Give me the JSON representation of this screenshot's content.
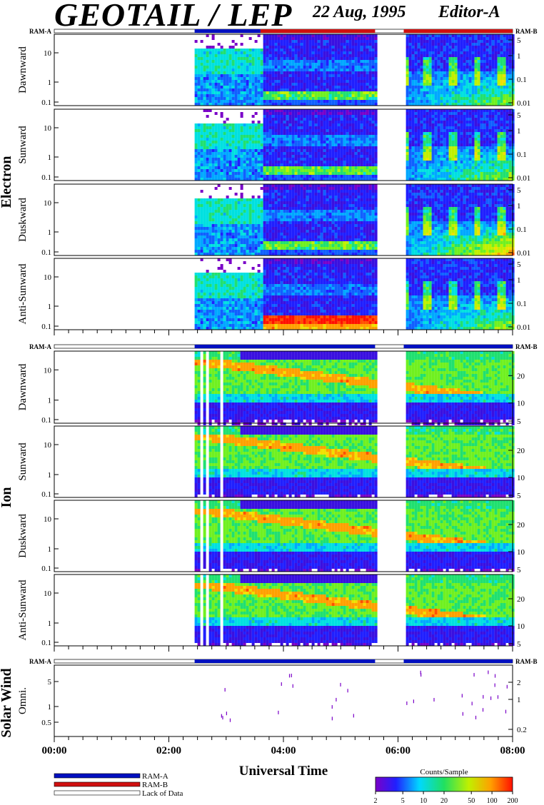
{
  "header": {
    "title": "GEOTAIL / LEP",
    "date": "22 Aug, 1995",
    "editor": "Editor-A"
  },
  "sections": [
    {
      "name": "Electron",
      "panels": [
        "Dawnward",
        "Sunward",
        "Duskward",
        "Anti-Sunward"
      ]
    },
    {
      "name": "Ion",
      "panels": [
        "Dawnward",
        "Sunward",
        "Duskward",
        "Anti-Sunward"
      ]
    },
    {
      "name": "Solar Wind",
      "panels": [
        "Omni."
      ]
    }
  ],
  "ram_labels": {
    "left": "RAM-A",
    "right": "RAM-B"
  },
  "axes": {
    "electron_left_ticks": [
      "10",
      "1",
      "0.1"
    ],
    "electron_right_ticks": [
      "5",
      "1",
      "0.1",
      "0.01"
    ],
    "ion_left_ticks": [
      "10",
      "1",
      "0.1"
    ],
    "ion_right_ticks": [
      "20",
      "10",
      "5"
    ],
    "sw_left_ticks": [
      "5",
      "1",
      "0.5"
    ],
    "sw_right_ticks": [
      "2",
      "1",
      "0.2"
    ],
    "x_ticks": [
      "00:00",
      "02:00",
      "04:00",
      "06:00",
      "08:00"
    ],
    "x_label": "Universal Time"
  },
  "legend": {
    "ram_a": "RAM-A",
    "ram_b": "RAM-B",
    "lack": "Lack of Data",
    "colorbar_title": "Counts/Sample",
    "colorbar_ticks": [
      "2",
      "5",
      "10",
      "20",
      "50",
      "100",
      "200"
    ]
  },
  "colors": {
    "ram_a": "#0010c0",
    "ram_b": "#d01010",
    "background": "#ffffff"
  },
  "chart_data": {
    "type": "heatmap",
    "x_range_hours": [
      0,
      8
    ],
    "data_gap_hours": [
      5.6,
      6.1
    ],
    "data_start_hours": 2.45,
    "ram_bar_electron": [
      {
        "mode": "RAM-A",
        "from": 2.45,
        "to": 3.6
      },
      {
        "mode": "RAM-B",
        "from": 3.6,
        "to": 5.6
      },
      {
        "mode": "Lack of Data",
        "from": 5.6,
        "to": 6.1
      },
      {
        "mode": "RAM-B",
        "from": 6.1,
        "to": 8.0
      }
    ],
    "ram_bar_ion": [
      {
        "mode": "RAM-A",
        "from": 2.45,
        "to": 5.6
      },
      {
        "mode": "Lack of Data",
        "from": 5.6,
        "to": 6.1
      },
      {
        "mode": "RAM-A",
        "from": 6.1,
        "to": 8.0
      }
    ],
    "color_scale": [
      2,
      5,
      10,
      20,
      50,
      100,
      200
    ]
  }
}
